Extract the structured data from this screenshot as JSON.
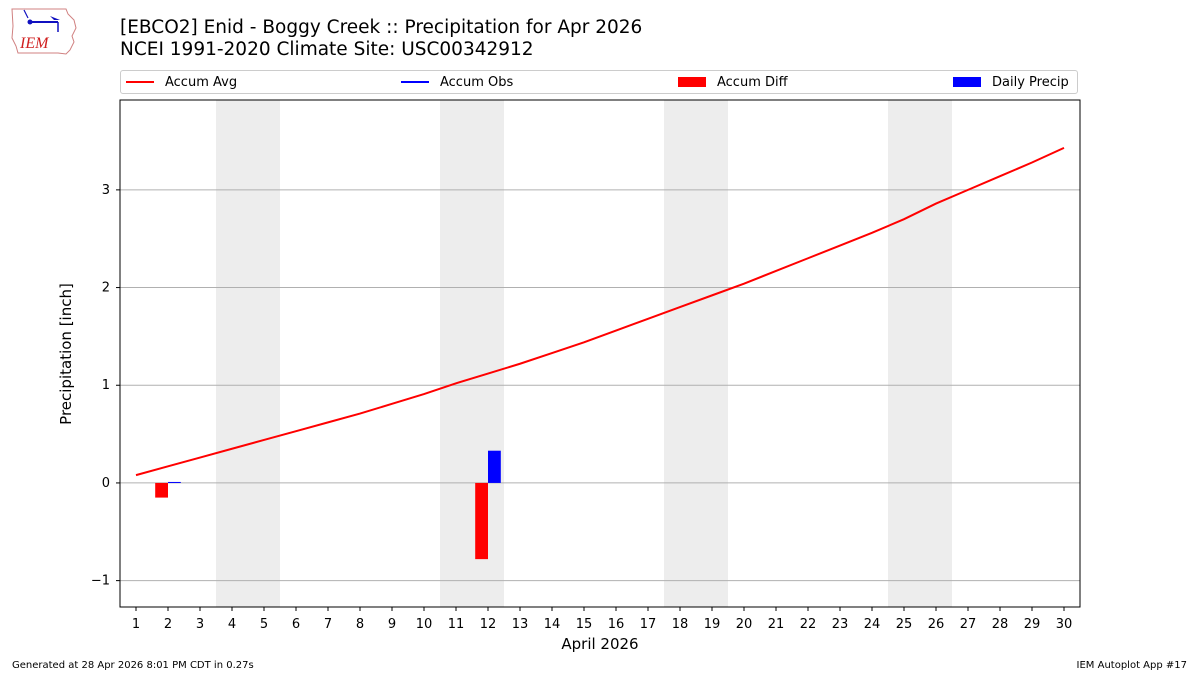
{
  "header": {
    "title_line1": "[EBCO2] Enid - Boggy Creek :: Precipitation for Apr 2026",
    "title_line2": "NCEI 1991-2020 Climate Site: USC00342912",
    "logo_text": "IEM"
  },
  "legend": {
    "items": [
      {
        "label": "Accum Avg",
        "kind": "line",
        "color": "#ff0000"
      },
      {
        "label": "Accum Obs",
        "kind": "line",
        "color": "#0000ff"
      },
      {
        "label": "Accum Diff",
        "kind": "patch",
        "color": "#ff0000"
      },
      {
        "label": "Daily Precip",
        "kind": "patch",
        "color": "#0000ff"
      }
    ]
  },
  "footer": {
    "left": "Generated at 28 Apr 2026 8:01 PM CDT in 0.27s",
    "right": "IEM Autoplot App #17"
  },
  "chart_data": {
    "type": "line",
    "title": "[EBCO2] Enid - Boggy Creek :: Precipitation for Apr 2026",
    "subtitle": "NCEI 1991-2020 Climate Site: USC00342912",
    "xlabel": "April 2026",
    "ylabel": "Precipitation [inch]",
    "x": [
      1,
      2,
      3,
      4,
      5,
      6,
      7,
      8,
      9,
      10,
      11,
      12,
      13,
      14,
      15,
      16,
      17,
      18,
      19,
      20,
      21,
      22,
      23,
      24,
      25,
      26,
      27,
      28,
      29,
      30
    ],
    "xticks": [
      "1",
      "2",
      "3",
      "4",
      "5",
      "6",
      "7",
      "8",
      "9",
      "10",
      "11",
      "12",
      "13",
      "14",
      "15",
      "16",
      "17",
      "18",
      "19",
      "20",
      "21",
      "22",
      "23",
      "24",
      "25",
      "26",
      "27",
      "28",
      "29",
      "30"
    ],
    "yticks": [
      "−1",
      "0",
      "1",
      "2",
      "3"
    ],
    "ytick_values": [
      -1,
      0,
      1,
      2,
      3
    ],
    "ylim": [
      -1.27,
      3.92
    ],
    "xlim": [
      0.5,
      30.5
    ],
    "grid": "horizontal",
    "legend_position": "top",
    "weekend_shading": [
      [
        3.5,
        5.5
      ],
      [
        10.5,
        12.5
      ],
      [
        17.5,
        19.5
      ],
      [
        24.5,
        26.5
      ]
    ],
    "series": [
      {
        "name": "Accum Avg",
        "type": "line",
        "color": "#ff0000",
        "values": [
          0.08,
          0.17,
          0.26,
          0.35,
          0.44,
          0.53,
          0.62,
          0.71,
          0.81,
          0.91,
          1.02,
          1.12,
          1.22,
          1.33,
          1.44,
          1.56,
          1.68,
          1.8,
          1.92,
          2.04,
          2.17,
          2.3,
          2.43,
          2.56,
          2.7,
          2.86,
          3.0,
          3.14,
          3.28,
          3.43
        ]
      },
      {
        "name": "Accum Obs",
        "type": "line",
        "color": "#0000ff",
        "values": [
          0.0,
          0.01,
          null,
          null,
          null,
          null,
          null,
          null,
          null,
          null,
          null,
          0.34,
          null,
          null,
          null,
          null,
          null,
          null,
          null,
          null,
          null,
          null,
          null,
          null,
          null,
          null,
          null,
          null,
          null,
          null
        ]
      },
      {
        "name": "Accum Diff",
        "type": "bar",
        "color": "#ff0000",
        "values": [
          null,
          -0.15,
          null,
          null,
          null,
          null,
          null,
          null,
          null,
          null,
          null,
          -0.78,
          null,
          null,
          null,
          null,
          null,
          null,
          null,
          null,
          null,
          null,
          null,
          null,
          null,
          null,
          null,
          null,
          null,
          null
        ]
      },
      {
        "name": "Daily Precip",
        "type": "bar",
        "color": "#0000ff",
        "values": [
          null,
          0.01,
          null,
          null,
          null,
          null,
          null,
          null,
          null,
          null,
          null,
          0.33,
          null,
          null,
          null,
          null,
          null,
          null,
          null,
          null,
          null,
          null,
          null,
          null,
          null,
          null,
          null,
          null,
          null,
          null
        ]
      }
    ]
  }
}
